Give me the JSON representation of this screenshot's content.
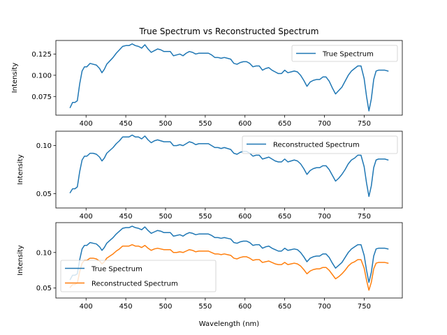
{
  "colors": {
    "series1": "#1f77b4",
    "series2": "#ff7f0e",
    "axes": "#000000",
    "legend_frame": "#cccccc"
  },
  "chart_data": [
    {
      "type": "line",
      "title": "True Spectrum vs Reconstructed Spectrum",
      "xlabel": "",
      "ylabel": "Intensity",
      "xlim": [
        362,
        798
      ],
      "ylim": [
        0.053,
        0.141
      ],
      "xticks": [
        400,
        450,
        500,
        550,
        600,
        650,
        700,
        750
      ],
      "yticks": [
        0.075,
        0.1,
        0.125
      ],
      "ytick_labels": [
        "0.075",
        "0.100",
        "0.125"
      ],
      "legend": "upper right",
      "grid": false,
      "series": [
        {
          "name": "True Spectrum",
          "color": "#1f77b4",
          "x": [
            380,
            383,
            386,
            389,
            392,
            395,
            398,
            401,
            405,
            409,
            413,
            417,
            420,
            423,
            426,
            430,
            434,
            438,
            442,
            446,
            450,
            454,
            458,
            462,
            466,
            470,
            474,
            478,
            482,
            486,
            490,
            494,
            498,
            502,
            506,
            510,
            514,
            518,
            522,
            526,
            530,
            534,
            538,
            542,
            546,
            550,
            554,
            558,
            562,
            566,
            570,
            574,
            578,
            582,
            586,
            590,
            594,
            598,
            602,
            606,
            610,
            614,
            618,
            622,
            626,
            630,
            634,
            638,
            642,
            646,
            650,
            654,
            658,
            662,
            666,
            670,
            674,
            678,
            682,
            686,
            690,
            694,
            698,
            702,
            706,
            710,
            714,
            718,
            722,
            726,
            730,
            734,
            738,
            742,
            746,
            750,
            753,
            756,
            759,
            762,
            765,
            768,
            772,
            776,
            780
          ],
          "y": [
            0.062,
            0.068,
            0.068,
            0.07,
            0.09,
            0.105,
            0.11,
            0.11,
            0.114,
            0.113,
            0.112,
            0.108,
            0.103,
            0.107,
            0.113,
            0.117,
            0.121,
            0.126,
            0.13,
            0.134,
            0.135,
            0.135,
            0.137,
            0.135,
            0.134,
            0.132,
            0.136,
            0.131,
            0.127,
            0.129,
            0.131,
            0.13,
            0.128,
            0.128,
            0.128,
            0.123,
            0.124,
            0.125,
            0.123,
            0.126,
            0.128,
            0.127,
            0.125,
            0.126,
            0.126,
            0.126,
            0.126,
            0.124,
            0.121,
            0.121,
            0.12,
            0.121,
            0.12,
            0.119,
            0.114,
            0.113,
            0.115,
            0.116,
            0.116,
            0.114,
            0.11,
            0.111,
            0.111,
            0.106,
            0.108,
            0.109,
            0.106,
            0.104,
            0.102,
            0.102,
            0.106,
            0.103,
            0.104,
            0.105,
            0.104,
            0.1,
            0.094,
            0.087,
            0.092,
            0.094,
            0.095,
            0.095,
            0.098,
            0.098,
            0.093,
            0.085,
            0.078,
            0.082,
            0.086,
            0.093,
            0.1,
            0.105,
            0.108,
            0.111,
            0.111,
            0.096,
            0.075,
            0.058,
            0.072,
            0.095,
            0.105,
            0.106,
            0.106,
            0.106,
            0.105
          ]
        }
      ]
    },
    {
      "type": "line",
      "title": "",
      "xlabel": "",
      "ylabel": "Intensity",
      "xlim": [
        362,
        798
      ],
      "ylim": [
        0.035,
        0.115
      ],
      "xticks": [
        400,
        450,
        500,
        550,
        600,
        650,
        700,
        750
      ],
      "yticks": [
        0.05,
        0.1
      ],
      "ytick_labels": [
        "0.05",
        "0.10"
      ],
      "legend": "upper right",
      "grid": false,
      "series": [
        {
          "name": "Reconstructed Spectrum",
          "color": "#1f77b4",
          "x": [
            380,
            383,
            386,
            389,
            392,
            395,
            398,
            401,
            405,
            409,
            413,
            417,
            420,
            423,
            426,
            430,
            434,
            438,
            442,
            446,
            450,
            454,
            458,
            462,
            466,
            470,
            474,
            478,
            482,
            486,
            490,
            494,
            498,
            502,
            506,
            510,
            514,
            518,
            522,
            526,
            530,
            534,
            538,
            542,
            546,
            550,
            554,
            558,
            562,
            566,
            570,
            574,
            578,
            582,
            586,
            590,
            594,
            598,
            602,
            606,
            610,
            614,
            618,
            622,
            626,
            630,
            634,
            638,
            642,
            646,
            650,
            654,
            658,
            662,
            666,
            670,
            674,
            678,
            682,
            686,
            690,
            694,
            698,
            702,
            706,
            710,
            714,
            718,
            722,
            726,
            730,
            734,
            738,
            742,
            746,
            750,
            753,
            756,
            759,
            762,
            765,
            768,
            772,
            776,
            780
          ],
          "y": [
            0.051,
            0.055,
            0.055,
            0.057,
            0.073,
            0.085,
            0.089,
            0.089,
            0.092,
            0.092,
            0.091,
            0.088,
            0.084,
            0.087,
            0.092,
            0.095,
            0.098,
            0.102,
            0.105,
            0.109,
            0.109,
            0.109,
            0.111,
            0.109,
            0.109,
            0.107,
            0.11,
            0.106,
            0.103,
            0.105,
            0.106,
            0.105,
            0.104,
            0.104,
            0.104,
            0.1,
            0.1,
            0.101,
            0.1,
            0.102,
            0.104,
            0.103,
            0.101,
            0.102,
            0.102,
            0.102,
            0.102,
            0.1,
            0.098,
            0.098,
            0.097,
            0.098,
            0.097,
            0.096,
            0.092,
            0.091,
            0.093,
            0.094,
            0.094,
            0.092,
            0.089,
            0.09,
            0.09,
            0.086,
            0.087,
            0.088,
            0.086,
            0.084,
            0.083,
            0.083,
            0.086,
            0.083,
            0.084,
            0.085,
            0.084,
            0.081,
            0.076,
            0.07,
            0.074,
            0.076,
            0.077,
            0.077,
            0.079,
            0.079,
            0.075,
            0.069,
            0.063,
            0.066,
            0.07,
            0.075,
            0.081,
            0.085,
            0.087,
            0.09,
            0.09,
            0.078,
            0.061,
            0.047,
            0.058,
            0.077,
            0.085,
            0.086,
            0.086,
            0.086,
            0.085
          ]
        }
      ]
    },
    {
      "type": "line",
      "title": "",
      "xlabel": "Wavelength (nm)",
      "ylabel": "Intensity",
      "xlim": [
        362,
        798
      ],
      "ylim": [
        0.036,
        0.142
      ],
      "xticks": [
        400,
        450,
        500,
        550,
        600,
        650,
        700,
        750
      ],
      "yticks": [
        0.05,
        0.1
      ],
      "ytick_labels": [
        "0.05",
        "0.10"
      ],
      "legend": "lower left",
      "grid": false,
      "series": [
        {
          "name": "True Spectrum",
          "color": "#1f77b4",
          "x": [
            380,
            383,
            386,
            389,
            392,
            395,
            398,
            401,
            405,
            409,
            413,
            417,
            420,
            423,
            426,
            430,
            434,
            438,
            442,
            446,
            450,
            454,
            458,
            462,
            466,
            470,
            474,
            478,
            482,
            486,
            490,
            494,
            498,
            502,
            506,
            510,
            514,
            518,
            522,
            526,
            530,
            534,
            538,
            542,
            546,
            550,
            554,
            558,
            562,
            566,
            570,
            574,
            578,
            582,
            586,
            590,
            594,
            598,
            602,
            606,
            610,
            614,
            618,
            622,
            626,
            630,
            634,
            638,
            642,
            646,
            650,
            654,
            658,
            662,
            666,
            670,
            674,
            678,
            682,
            686,
            690,
            694,
            698,
            702,
            706,
            710,
            714,
            718,
            722,
            726,
            730,
            734,
            738,
            742,
            746,
            750,
            753,
            756,
            759,
            762,
            765,
            768,
            772,
            776,
            780
          ],
          "y": [
            0.062,
            0.068,
            0.068,
            0.07,
            0.09,
            0.105,
            0.11,
            0.11,
            0.114,
            0.113,
            0.112,
            0.108,
            0.103,
            0.107,
            0.113,
            0.117,
            0.121,
            0.126,
            0.13,
            0.134,
            0.135,
            0.135,
            0.137,
            0.135,
            0.134,
            0.132,
            0.136,
            0.131,
            0.127,
            0.129,
            0.131,
            0.13,
            0.128,
            0.128,
            0.128,
            0.123,
            0.124,
            0.125,
            0.123,
            0.126,
            0.128,
            0.127,
            0.125,
            0.126,
            0.126,
            0.126,
            0.126,
            0.124,
            0.121,
            0.121,
            0.12,
            0.121,
            0.12,
            0.119,
            0.114,
            0.113,
            0.115,
            0.116,
            0.116,
            0.114,
            0.11,
            0.111,
            0.111,
            0.106,
            0.108,
            0.109,
            0.106,
            0.104,
            0.102,
            0.102,
            0.106,
            0.103,
            0.104,
            0.105,
            0.104,
            0.1,
            0.094,
            0.087,
            0.092,
            0.094,
            0.095,
            0.095,
            0.098,
            0.098,
            0.093,
            0.085,
            0.078,
            0.082,
            0.086,
            0.093,
            0.1,
            0.105,
            0.108,
            0.111,
            0.111,
            0.096,
            0.075,
            0.058,
            0.072,
            0.095,
            0.105,
            0.106,
            0.106,
            0.106,
            0.105
          ]
        },
        {
          "name": "Reconstructed Spectrum",
          "color": "#ff7f0e",
          "x": [
            380,
            383,
            386,
            389,
            392,
            395,
            398,
            401,
            405,
            409,
            413,
            417,
            420,
            423,
            426,
            430,
            434,
            438,
            442,
            446,
            450,
            454,
            458,
            462,
            466,
            470,
            474,
            478,
            482,
            486,
            490,
            494,
            498,
            502,
            506,
            510,
            514,
            518,
            522,
            526,
            530,
            534,
            538,
            542,
            546,
            550,
            554,
            558,
            562,
            566,
            570,
            574,
            578,
            582,
            586,
            590,
            594,
            598,
            602,
            606,
            610,
            614,
            618,
            622,
            626,
            630,
            634,
            638,
            642,
            646,
            650,
            654,
            658,
            662,
            666,
            670,
            674,
            678,
            682,
            686,
            690,
            694,
            698,
            702,
            706,
            710,
            714,
            718,
            722,
            726,
            730,
            734,
            738,
            742,
            746,
            750,
            753,
            756,
            759,
            762,
            765,
            768,
            772,
            776,
            780
          ],
          "y": [
            0.051,
            0.055,
            0.055,
            0.057,
            0.073,
            0.085,
            0.089,
            0.089,
            0.092,
            0.092,
            0.091,
            0.088,
            0.084,
            0.087,
            0.092,
            0.095,
            0.098,
            0.102,
            0.105,
            0.109,
            0.109,
            0.109,
            0.111,
            0.109,
            0.109,
            0.107,
            0.11,
            0.106,
            0.103,
            0.105,
            0.106,
            0.105,
            0.104,
            0.104,
            0.104,
            0.1,
            0.1,
            0.101,
            0.1,
            0.102,
            0.104,
            0.103,
            0.101,
            0.102,
            0.102,
            0.102,
            0.102,
            0.1,
            0.098,
            0.098,
            0.097,
            0.098,
            0.097,
            0.096,
            0.092,
            0.091,
            0.093,
            0.094,
            0.094,
            0.092,
            0.089,
            0.09,
            0.09,
            0.086,
            0.087,
            0.088,
            0.086,
            0.084,
            0.083,
            0.083,
            0.086,
            0.083,
            0.084,
            0.085,
            0.084,
            0.081,
            0.076,
            0.07,
            0.074,
            0.076,
            0.077,
            0.077,
            0.079,
            0.079,
            0.075,
            0.069,
            0.063,
            0.066,
            0.07,
            0.075,
            0.081,
            0.085,
            0.087,
            0.09,
            0.09,
            0.078,
            0.061,
            0.047,
            0.058,
            0.077,
            0.085,
            0.086,
            0.086,
            0.086,
            0.085
          ]
        }
      ]
    }
  ]
}
